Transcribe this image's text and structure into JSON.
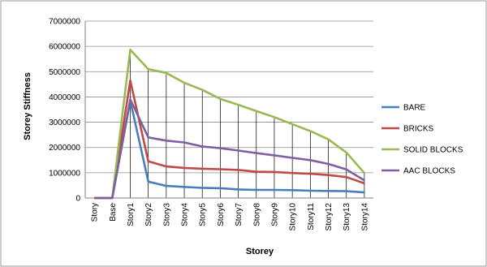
{
  "chart_data": {
    "type": "line",
    "categories": [
      "Story",
      "Base",
      "Story1",
      "Story2",
      "Story3",
      "Story4",
      "Story5",
      "Story6",
      "Story7",
      "Story8",
      "Story9",
      "Story10",
      "Story11",
      "Story12",
      "Story13",
      "Story14"
    ],
    "xlabel": "Storey",
    "ylabel": "Storey Stiffness",
    "ylim": [
      0,
      7000000
    ],
    "yticks": [
      "0",
      "1000000",
      "2000000",
      "3000000",
      "4000000",
      "5000000",
      "6000000",
      "7000000"
    ],
    "grid": "horizontal major gridlines; vertical drop lines at each category",
    "legend_position": "right",
    "series": [
      {
        "name": "BARE",
        "color": "#4a7ebb",
        "values": [
          0,
          0,
          3850000,
          650000,
          480000,
          440000,
          400000,
          390000,
          340000,
          320000,
          320000,
          310000,
          290000,
          280000,
          270000,
          220000
        ]
      },
      {
        "name": "BRICKS",
        "color": "#be4b48",
        "values": [
          0,
          0,
          4650000,
          1450000,
          1250000,
          1190000,
          1160000,
          1140000,
          1110000,
          1040000,
          1030000,
          990000,
          960000,
          910000,
          830000,
          580000
        ]
      },
      {
        "name": "SOLID BLOCKS",
        "color": "#98b954",
        "values": [
          0,
          0,
          5870000,
          5100000,
          4950000,
          4560000,
          4280000,
          3920000,
          3690000,
          3440000,
          3200000,
          2920000,
          2650000,
          2320000,
          1800000,
          990000
        ]
      },
      {
        "name": "AAC BLOCKS",
        "color": "#7d60a0",
        "values": [
          0,
          0,
          3900000,
          2400000,
          2270000,
          2200000,
          2040000,
          1970000,
          1880000,
          1780000,
          1690000,
          1590000,
          1500000,
          1350000,
          1130000,
          700000
        ]
      }
    ]
  }
}
